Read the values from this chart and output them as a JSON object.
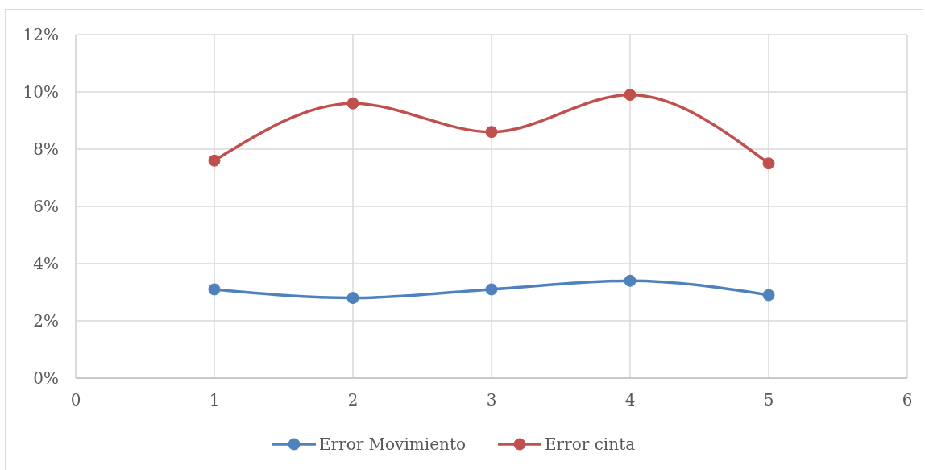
{
  "chart_data": {
    "type": "line",
    "x": [
      1,
      2,
      3,
      4,
      5
    ],
    "series": [
      {
        "name": "Error Movimiento",
        "color": "#4f81bd",
        "values": [
          3.1,
          2.8,
          3.1,
          3.4,
          2.9
        ]
      },
      {
        "name": "Error cinta",
        "color": "#c0504d",
        "values": [
          7.6,
          9.6,
          8.6,
          9.9,
          7.5
        ]
      }
    ],
    "xlim": [
      0,
      6
    ],
    "xticks": [
      0,
      1,
      2,
      3,
      4,
      5,
      6
    ],
    "ylim": [
      0,
      12
    ],
    "yticks": [
      {
        "value": 0,
        "label": "0%"
      },
      {
        "value": 2,
        "label": "2%"
      },
      {
        "value": 4,
        "label": "4%"
      },
      {
        "value": 6,
        "label": "6%"
      },
      {
        "value": 8,
        "label": "8%"
      },
      {
        "value": 10,
        "label": "10%"
      },
      {
        "value": 12,
        "label": "12%"
      }
    ],
    "grid": true,
    "legend": "bottom",
    "marker": "circle",
    "line_style": "solid"
  }
}
